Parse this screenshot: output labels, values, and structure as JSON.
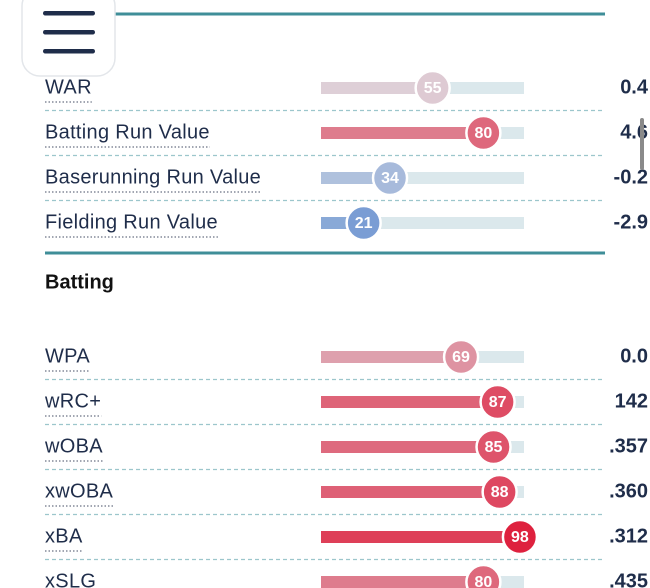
{
  "sections": [
    {
      "title": null,
      "rows": [
        {
          "label": "WAR",
          "percentile": 55,
          "value": "0.4"
        },
        {
          "label": "Batting Run Value",
          "percentile": 80,
          "value": "4.6"
        },
        {
          "label": "Baserunning Run Value",
          "percentile": 34,
          "value": "-0.2"
        },
        {
          "label": "Fielding Run Value",
          "percentile": 21,
          "value": "-2.9"
        }
      ]
    },
    {
      "title": "Batting",
      "rows": [
        {
          "label": "WPA",
          "percentile": 69,
          "value": "0.0"
        },
        {
          "label": "wRC+",
          "percentile": 87,
          "value": "142"
        },
        {
          "label": "wOBA",
          "percentile": 85,
          "value": ".357"
        },
        {
          "label": "xwOBA",
          "percentile": 88,
          "value": ".360"
        },
        {
          "label": "xBA",
          "percentile": 98,
          "value": ".312"
        },
        {
          "label": "xSLG",
          "percentile": 80,
          "value": ".435"
        }
      ]
    }
  ]
}
